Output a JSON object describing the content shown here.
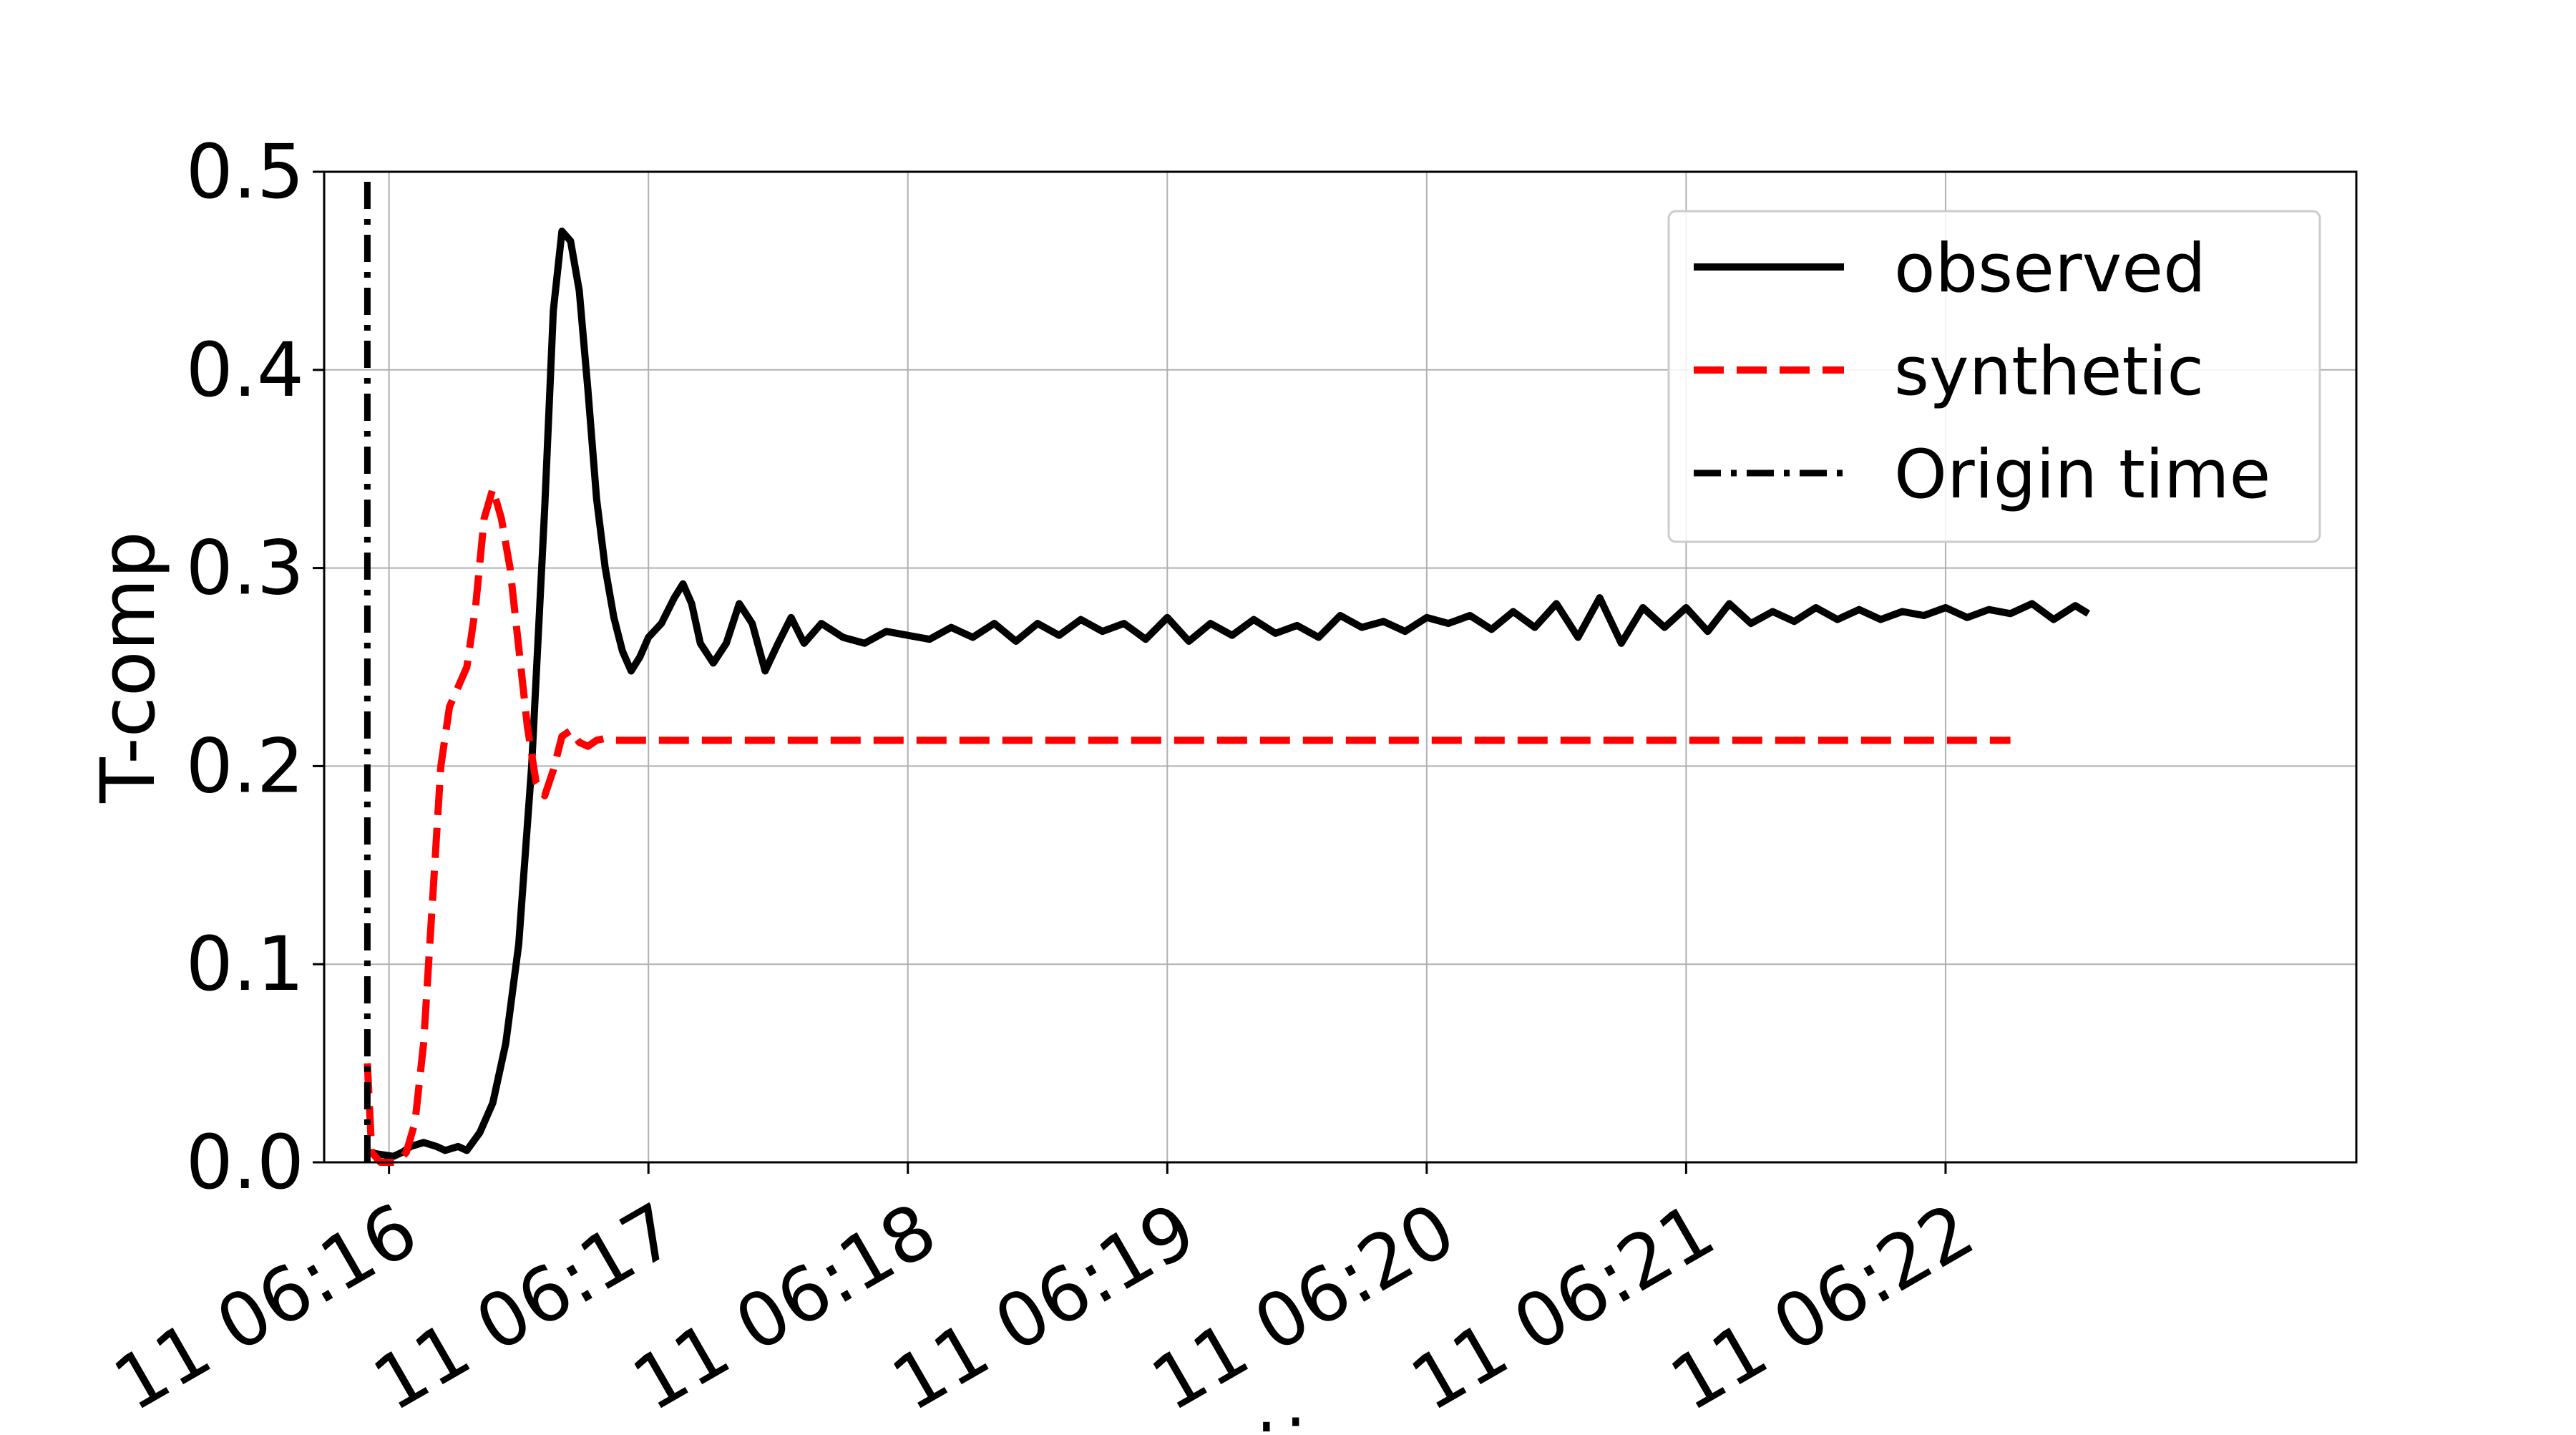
{
  "chart_data": {
    "type": "line",
    "title": "",
    "xlabel": "time",
    "ylabel": "T-comp",
    "xlim": [
      "11 06:15:45",
      "11 06:23:35"
    ],
    "ylim": [
      0,
      0.5
    ],
    "grid": true,
    "legend_position": "top-right",
    "x_ticks": [
      "11 06:16",
      "11 06:17",
      "11 06:18",
      "11 06:19",
      "11 06:20",
      "11 06:21",
      "11 06:22"
    ],
    "y_ticks": [
      "0.0",
      "0.1",
      "0.2",
      "0.3",
      "0.4",
      "0.5"
    ],
    "origin_time": "11 06:15:55",
    "series": [
      {
        "name": "observed",
        "color": "#000000",
        "style": "solid",
        "points": [
          [
            "11 06:15:55",
            0.005
          ],
          [
            "11 06:15:58",
            0.004
          ],
          [
            "11 06:16:01",
            0.003
          ],
          [
            "11 06:16:03",
            0.005
          ],
          [
            "11 06:16:05",
            0.008
          ],
          [
            "11 06:16:08",
            0.01
          ],
          [
            "11 06:16:11",
            0.008
          ],
          [
            "11 06:16:13",
            0.006
          ],
          [
            "11 06:16:16",
            0.008
          ],
          [
            "11 06:16:18",
            0.006
          ],
          [
            "11 06:16:21",
            0.015
          ],
          [
            "11 06:16:24",
            0.03
          ],
          [
            "11 06:16:27",
            0.06
          ],
          [
            "11 06:16:30",
            0.11
          ],
          [
            "11 06:16:33",
            0.2
          ],
          [
            "11 06:16:36",
            0.33
          ],
          [
            "11 06:16:38",
            0.43
          ],
          [
            "11 06:16:40",
            0.47
          ],
          [
            "11 06:16:42",
            0.465
          ],
          [
            "11 06:16:44",
            0.44
          ],
          [
            "11 06:16:46",
            0.39
          ],
          [
            "11 06:16:48",
            0.335
          ],
          [
            "11 06:16:50",
            0.3
          ],
          [
            "11 06:16:52",
            0.275
          ],
          [
            "11 06:16:54",
            0.258
          ],
          [
            "11 06:16:56",
            0.248
          ],
          [
            "11 06:16:58",
            0.255
          ],
          [
            "11 06:17:00",
            0.265
          ],
          [
            "11 06:17:03",
            0.272
          ],
          [
            "11 06:17:06",
            0.285
          ],
          [
            "11 06:17:08",
            0.292
          ],
          [
            "11 06:17:10",
            0.282
          ],
          [
            "11 06:17:12",
            0.262
          ],
          [
            "11 06:17:15",
            0.252
          ],
          [
            "11 06:17:18",
            0.262
          ],
          [
            "11 06:17:21",
            0.282
          ],
          [
            "11 06:17:24",
            0.272
          ],
          [
            "11 06:17:27",
            0.248
          ],
          [
            "11 06:17:30",
            0.262
          ],
          [
            "11 06:17:33",
            0.275
          ],
          [
            "11 06:17:36",
            0.262
          ],
          [
            "11 06:17:40",
            0.272
          ],
          [
            "11 06:17:45",
            0.265
          ],
          [
            "11 06:17:50",
            0.262
          ],
          [
            "11 06:17:55",
            0.268
          ],
          [
            "11 06:18:00",
            0.266
          ],
          [
            "11 06:18:05",
            0.264
          ],
          [
            "11 06:18:10",
            0.27
          ],
          [
            "11 06:18:15",
            0.265
          ],
          [
            "11 06:18:20",
            0.272
          ],
          [
            "11 06:18:25",
            0.263
          ],
          [
            "11 06:18:30",
            0.272
          ],
          [
            "11 06:18:35",
            0.266
          ],
          [
            "11 06:18:40",
            0.274
          ],
          [
            "11 06:18:45",
            0.268
          ],
          [
            "11 06:18:50",
            0.272
          ],
          [
            "11 06:18:55",
            0.264
          ],
          [
            "11 06:19:00",
            0.275
          ],
          [
            "11 06:19:05",
            0.263
          ],
          [
            "11 06:19:10",
            0.272
          ],
          [
            "11 06:19:15",
            0.266
          ],
          [
            "11 06:19:20",
            0.274
          ],
          [
            "11 06:19:25",
            0.267
          ],
          [
            "11 06:19:30",
            0.271
          ],
          [
            "11 06:19:35",
            0.265
          ],
          [
            "11 06:19:40",
            0.276
          ],
          [
            "11 06:19:45",
            0.27
          ],
          [
            "11 06:19:50",
            0.273
          ],
          [
            "11 06:19:55",
            0.268
          ],
          [
            "11 06:20:00",
            0.275
          ],
          [
            "11 06:20:05",
            0.272
          ],
          [
            "11 06:20:10",
            0.276
          ],
          [
            "11 06:20:15",
            0.269
          ],
          [
            "11 06:20:20",
            0.278
          ],
          [
            "11 06:20:25",
            0.27
          ],
          [
            "11 06:20:30",
            0.282
          ],
          [
            "11 06:20:35",
            0.265
          ],
          [
            "11 06:20:40",
            0.285
          ],
          [
            "11 06:20:45",
            0.262
          ],
          [
            "11 06:20:50",
            0.28
          ],
          [
            "11 06:20:55",
            0.27
          ],
          [
            "11 06:21:00",
            0.28
          ],
          [
            "11 06:21:05",
            0.268
          ],
          [
            "11 06:21:10",
            0.282
          ],
          [
            "11 06:21:15",
            0.272
          ],
          [
            "11 06:21:20",
            0.278
          ],
          [
            "11 06:21:25",
            0.273
          ],
          [
            "11 06:21:30",
            0.28
          ],
          [
            "11 06:21:35",
            0.274
          ],
          [
            "11 06:21:40",
            0.279
          ],
          [
            "11 06:21:45",
            0.274
          ],
          [
            "11 06:21:50",
            0.278
          ],
          [
            "11 06:21:55",
            0.276
          ],
          [
            "11 06:22:00",
            0.28
          ],
          [
            "11 06:22:05",
            0.275
          ],
          [
            "11 06:22:10",
            0.279
          ],
          [
            "11 06:22:15",
            0.277
          ],
          [
            "11 06:22:20",
            0.282
          ],
          [
            "11 06:22:25",
            0.274
          ],
          [
            "11 06:22:30",
            0.281
          ],
          [
            "11 06:22:33",
            0.277
          ]
        ]
      },
      {
        "name": "synthetic",
        "color": "#ff0000",
        "style": "dashed",
        "points": [
          [
            "11 06:15:55",
            0.05
          ],
          [
            "11 06:15:56",
            0.005
          ],
          [
            "11 06:15:58",
            0.0
          ],
          [
            "11 06:16:00",
            0.0
          ],
          [
            "11 06:16:02",
            0.0
          ],
          [
            "11 06:16:04",
            0.005
          ],
          [
            "11 06:16:06",
            0.02
          ],
          [
            "11 06:16:08",
            0.06
          ],
          [
            "11 06:16:10",
            0.13
          ],
          [
            "11 06:16:12",
            0.2
          ],
          [
            "11 06:16:14",
            0.23
          ],
          [
            "11 06:16:16",
            0.24
          ],
          [
            "11 06:16:18",
            0.25
          ],
          [
            "11 06:16:20",
            0.28
          ],
          [
            "11 06:16:22",
            0.325
          ],
          [
            "11 06:16:24",
            0.34
          ],
          [
            "11 06:16:26",
            0.325
          ],
          [
            "11 06:16:28",
            0.3
          ],
          [
            "11 06:16:30",
            0.26
          ],
          [
            "11 06:16:32",
            0.22
          ],
          [
            "11 06:16:34",
            0.192
          ],
          [
            "11 06:16:36",
            0.185
          ],
          [
            "11 06:16:38",
            0.198
          ],
          [
            "11 06:16:40",
            0.215
          ],
          [
            "11 06:16:42",
            0.218
          ],
          [
            "11 06:16:44",
            0.212
          ],
          [
            "11 06:16:46",
            0.21
          ],
          [
            "11 06:16:48",
            0.213
          ],
          [
            "11 06:16:50",
            0.214
          ],
          [
            "11 06:16:52",
            0.213
          ],
          [
            "11 06:16:56",
            0.213
          ],
          [
            "11 06:17:00",
            0.213
          ],
          [
            "11 06:18:00",
            0.213
          ],
          [
            "11 06:19:00",
            0.213
          ],
          [
            "11 06:20:00",
            0.213
          ],
          [
            "11 06:21:00",
            0.213
          ],
          [
            "11 06:22:00",
            0.213
          ],
          [
            "11 06:22:15",
            0.213
          ]
        ]
      },
      {
        "name": "Origin time",
        "color": "#000000",
        "style": "dashdot",
        "points": [
          [
            "11 06:15:55",
            0.0
          ],
          [
            "11 06:15:55",
            0.5
          ]
        ]
      }
    ]
  }
}
